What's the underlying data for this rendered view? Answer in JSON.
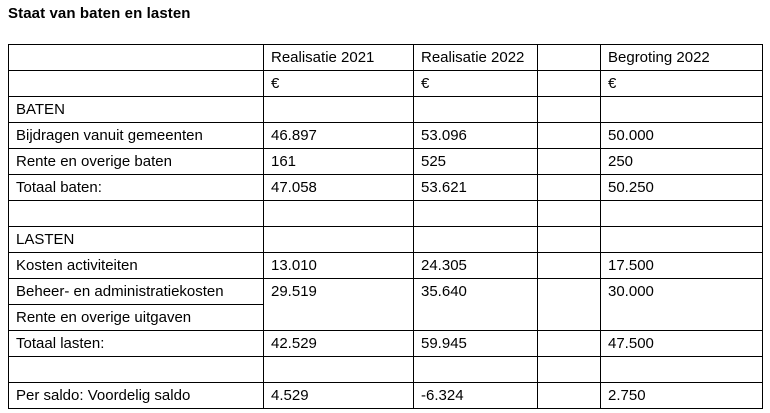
{
  "title": "Staat van baten en lasten",
  "table": {
    "header": [
      "",
      "Realisatie 2021",
      "Realisatie 2022",
      "",
      "Begroting 2022"
    ],
    "currency": [
      "",
      "€",
      "€",
      "",
      "€"
    ],
    "rows": [
      [
        "BATEN",
        "",
        "",
        "",
        ""
      ],
      [
        "Bijdragen vanuit gemeenten",
        "46.897",
        "53.096",
        "",
        "50.000"
      ],
      [
        "Rente en overige baten",
        "161",
        "525",
        "",
        "250"
      ],
      [
        "Totaal baten:",
        "47.058",
        "53.621",
        "",
        "50.250"
      ],
      [
        "",
        "",
        "",
        "",
        ""
      ],
      [
        "LASTEN",
        "",
        "",
        "",
        ""
      ],
      [
        "Kosten activiteiten",
        "13.010",
        "24.305",
        "",
        "17.500"
      ],
      [
        "Beheer- en administratiekosten",
        "29.519",
        "35.640",
        "",
        "30.000"
      ],
      [
        "Rente en overige uitgaven"
      ],
      [
        "Totaal lasten:",
        "42.529",
        "59.945",
        "",
        "47.500"
      ],
      [
        "",
        "",
        "",
        "",
        ""
      ],
      [
        "Per saldo: Voordelig saldo",
        "4.529",
        "-6.324",
        "",
        "2.750"
      ]
    ]
  }
}
